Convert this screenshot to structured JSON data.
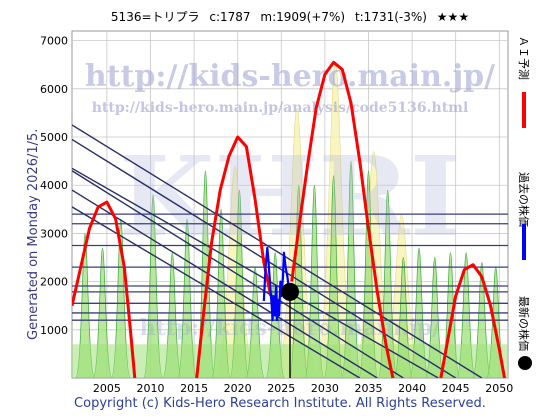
{
  "header": {
    "code_name": "5136=トリプラ",
    "current": "c:1787",
    "median": "m:1909(+7%)",
    "target": "t:1731(-3%)",
    "stars": "★★★"
  },
  "side_text": "Generated on Monday 2026/1/5.",
  "footer": "Copyright (c) Kids-Hero Research Institute. All Rights Reserved.",
  "watermark": {
    "url_large": "http://kids-hero.main.jp/",
    "url_small": "http://kids-hero.main.jp/analysis/code5136.html",
    "big_text": "KHRI",
    "bottom_text": "http://kids-hero.main.jp/"
  },
  "legend": [
    {
      "label": "ＡＩ予測",
      "color": "#ff0000"
    },
    {
      "label": "過去の株価",
      "color": "#0000ff"
    },
    {
      "label": "最新の株価",
      "color": "#000000"
    }
  ],
  "chart_data": {
    "type": "line",
    "xlim": [
      2001,
      2051
    ],
    "ylim": [
      0,
      7200
    ],
    "x_ticks": [
      2005,
      2010,
      2015,
      2020,
      2025,
      2030,
      2035,
      2040,
      2045,
      2050
    ],
    "y_ticks": [
      1000,
      2000,
      3000,
      4000,
      5000,
      6000,
      7000
    ],
    "colors": {
      "ai": "#ff0000",
      "past": "#0000ff",
      "latest": "#000000",
      "channel": "#2a2f66",
      "green_fill": "#9fe07a",
      "yellow_fill": "#f7f2b0"
    },
    "series": [
      {
        "name": "ＡＩ予測",
        "x": [
          2001,
          2002,
          2003,
          2004,
          2005,
          2006,
          2007,
          2007.8,
          2008.2
        ],
        "y": [
          1500,
          2300,
          3100,
          3550,
          3650,
          3300,
          2300,
          800,
          0
        ]
      },
      {
        "name": "ＡＩ予測",
        "x": [
          2015.3,
          2016,
          2017,
          2018,
          2019,
          2020,
          2021,
          2022,
          2023,
          2023.8
        ],
        "y": [
          0,
          1200,
          2800,
          3900,
          4600,
          5000,
          4800,
          3700,
          2400,
          1700
        ]
      },
      {
        "name": "ＡＩ予測",
        "x": [
          2026.2,
          2027,
          2028,
          2029,
          2030,
          2031,
          2032,
          2033,
          2034,
          2035,
          2036,
          2037,
          2037.8
        ],
        "y": [
          2000,
          3100,
          4400,
          5600,
          6300,
          6550,
          6400,
          5700,
          4500,
          3100,
          1800,
          700,
          0
        ]
      },
      {
        "name": "ＡＩ予測",
        "x": [
          2043.3,
          2044,
          2045,
          2046,
          2047,
          2048,
          2049,
          2050,
          2050.6
        ],
        "y": [
          0,
          700,
          1700,
          2250,
          2350,
          2100,
          1500,
          600,
          0
        ]
      },
      {
        "name": "過去の株価",
        "x": [
          2023.0,
          2023.2,
          2023.4,
          2023.5,
          2023.7,
          2023.9,
          2024.0,
          2024.1,
          2024.25,
          2024.4,
          2024.5,
          2024.6,
          2024.75,
          2024.9,
          2025.0,
          2025.2,
          2025.3,
          2025.5,
          2025.7,
          2025.85,
          2026.0
        ],
        "y": [
          1600,
          2300,
          2700,
          2500,
          2000,
          1500,
          1200,
          1700,
          1300,
          1900,
          1200,
          1600,
          1300,
          2000,
          1700,
          2100,
          2600,
          2300,
          2100,
          1900,
          1787
        ]
      }
    ],
    "latest": {
      "x": 2026.0,
      "y": 1787
    },
    "horizontal_levels": [
      1200,
      1350,
      1550,
      1787,
      1909,
      2300,
      2750,
      3200,
      3400
    ],
    "channel_lines": [
      {
        "x1": 2001,
        "y1": 5250,
        "x2": 2048,
        "y2": 0
      },
      {
        "x1": 2001,
        "y1": 4950,
        "x2": 2045,
        "y2": 0
      },
      {
        "x1": 2001,
        "y1": 4350,
        "x2": 2043,
        "y2": 0
      },
      {
        "x1": 2001,
        "y1": 4300,
        "x2": 2039,
        "y2": 0
      },
      {
        "x1": 2001,
        "y1": 3900,
        "x2": 2036,
        "y2": 0
      },
      {
        "x1": 2001,
        "y1": 3550,
        "x2": 2034,
        "y2": 0
      }
    ],
    "green_peaks": [
      {
        "x": 2002.5,
        "y": 3000
      },
      {
        "x": 2004.5,
        "y": 2700
      },
      {
        "x": 2006.6,
        "y": 3300
      },
      {
        "x": 2010.3,
        "y": 3800
      },
      {
        "x": 2012.5,
        "y": 2600
      },
      {
        "x": 2014.2,
        "y": 3300
      },
      {
        "x": 2016.3,
        "y": 4300
      },
      {
        "x": 2018.1,
        "y": 3500
      },
      {
        "x": 2020.2,
        "y": 3900
      },
      {
        "x": 2022.0,
        "y": 2300
      },
      {
        "x": 2024.3,
        "y": 2600
      },
      {
        "x": 2027.0,
        "y": 4000
      },
      {
        "x": 2028.8,
        "y": 4000
      },
      {
        "x": 2031.0,
        "y": 4200
      },
      {
        "x": 2033.0,
        "y": 4500
      },
      {
        "x": 2035.0,
        "y": 4300
      },
      {
        "x": 2037.2,
        "y": 3900
      },
      {
        "x": 2039.0,
        "y": 2500
      },
      {
        "x": 2040.8,
        "y": 2700
      },
      {
        "x": 2042.6,
        "y": 2500
      },
      {
        "x": 2044.4,
        "y": 2600
      },
      {
        "x": 2046.2,
        "y": 2600
      },
      {
        "x": 2048.0,
        "y": 2400
      },
      {
        "x": 2049.6,
        "y": 2300
      }
    ],
    "yellow_peaks": [
      {
        "x": 2019.7,
        "y": 4400
      },
      {
        "x": 2026.8,
        "y": 5600
      },
      {
        "x": 2031.2,
        "y": 6550
      },
      {
        "x": 2035.6,
        "y": 4700
      },
      {
        "x": 2038.8,
        "y": 3400
      }
    ]
  }
}
